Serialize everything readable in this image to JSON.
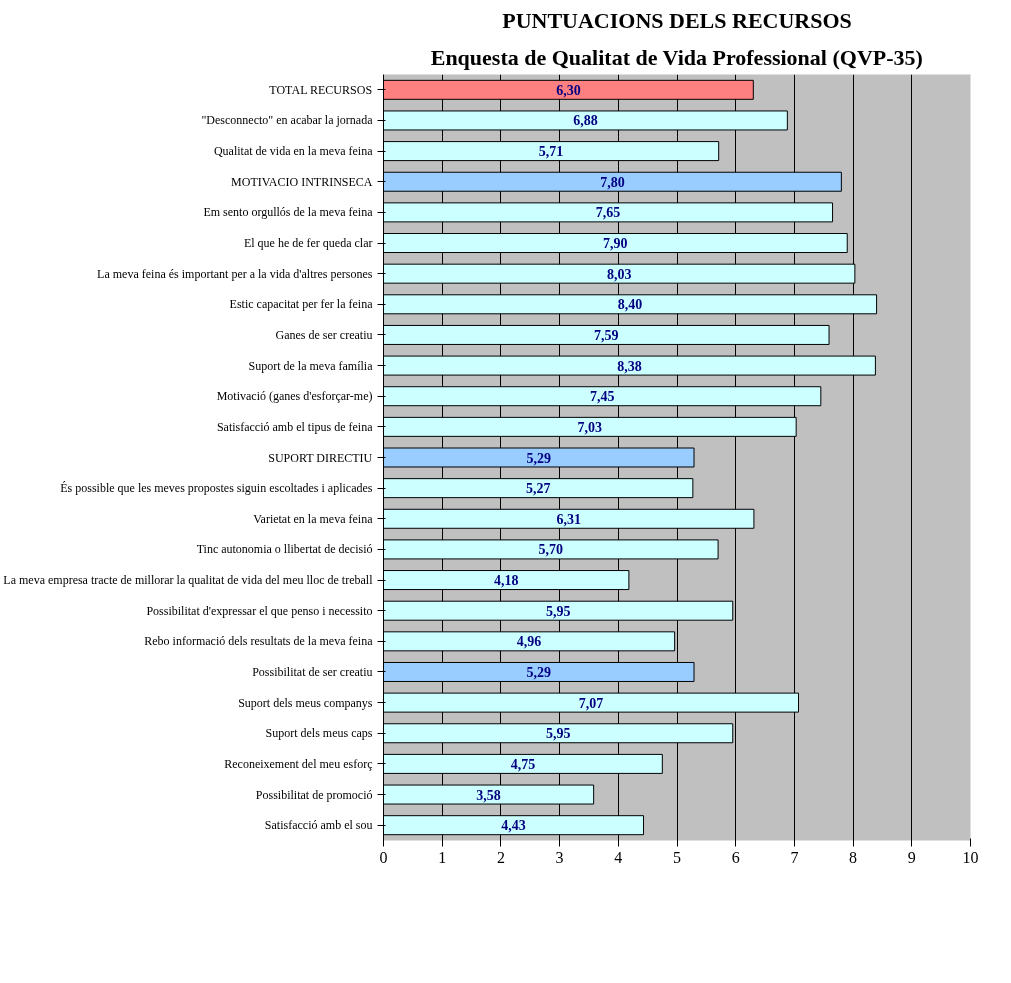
{
  "chart_data": {
    "type": "bar",
    "orientation": "horizontal",
    "title": "PUNTUACIONS DELS RECURSOS",
    "subtitle": "Enquesta de Qualitat de Vida Professional (QVP-35)",
    "categories": [
      "TOTAL RECURSOS",
      "\"Desconnecto\" en acabar la jornada",
      "Qualitat de vida en la meva feina",
      "MOTIVACIO INTRINSECA",
      "Em sento orgullós de la meva feina",
      "El que he de fer queda clar",
      "La meva feina és important per a la vida d'altres persones",
      "Estic capacitat per fer la feina",
      "Ganes de ser creatiu",
      "Suport de la meva família",
      "Motivació (ganes d'esforçar-me)",
      "Satisfacció amb el tipus de feina",
      "SUPORT DIRECTIU",
      "És possible que les meves propostes siguin escoltades i aplicades",
      "Varietat en la meva feina",
      "Tinc autonomia o llibertat de decisió",
      "La meva empresa tracte de millorar la qualitat de vida del meu lloc de treball",
      "Possibilitat d'expressar el que penso i necessito",
      "Rebo informació dels resultats de la meva feina",
      "Possibilitat de ser creatiu",
      "Suport dels meus companys",
      "Suport dels meus caps",
      "Reconeixement del meu esforç",
      "Possibilitat de promoció",
      "Satisfacció amb el sou"
    ],
    "values": [
      6.3,
      6.88,
      5.71,
      7.8,
      7.65,
      7.9,
      8.03,
      8.4,
      7.59,
      8.38,
      7.45,
      7.03,
      5.29,
      5.27,
      6.31,
      5.7,
      4.18,
      5.95,
      4.96,
      5.29,
      7.07,
      5.95,
      4.75,
      3.58,
      4.43
    ],
    "value_labels": [
      "6,30",
      "6,88",
      "5,71",
      "7,80",
      "7,65",
      "7,90",
      "8,03",
      "8,40",
      "7,59",
      "8,38",
      "7,45",
      "7,03",
      "5,29",
      "5,27",
      "6,31",
      "5,70",
      "4,18",
      "5,95",
      "4,96",
      "5,29",
      "7,07",
      "5,95",
      "4,75",
      "3,58",
      "4,43"
    ],
    "colors": [
      "#ff8080",
      "#ccffff",
      "#ccffff",
      "#99ccff",
      "#ccffff",
      "#ccffff",
      "#ccffff",
      "#ccffff",
      "#ccffff",
      "#ccffff",
      "#ccffff",
      "#ccffff",
      "#99ccff",
      "#ccffff",
      "#ccffff",
      "#ccffff",
      "#ccffff",
      "#ccffff",
      "#ccffff",
      "#99ccff",
      "#ccffff",
      "#ccffff",
      "#ccffff",
      "#ccffff",
      "#ccffff"
    ],
    "xlim": [
      0,
      10
    ],
    "xticks": [
      0,
      1,
      2,
      3,
      4,
      5,
      6,
      7,
      8,
      9,
      10
    ],
    "grid": "x"
  }
}
